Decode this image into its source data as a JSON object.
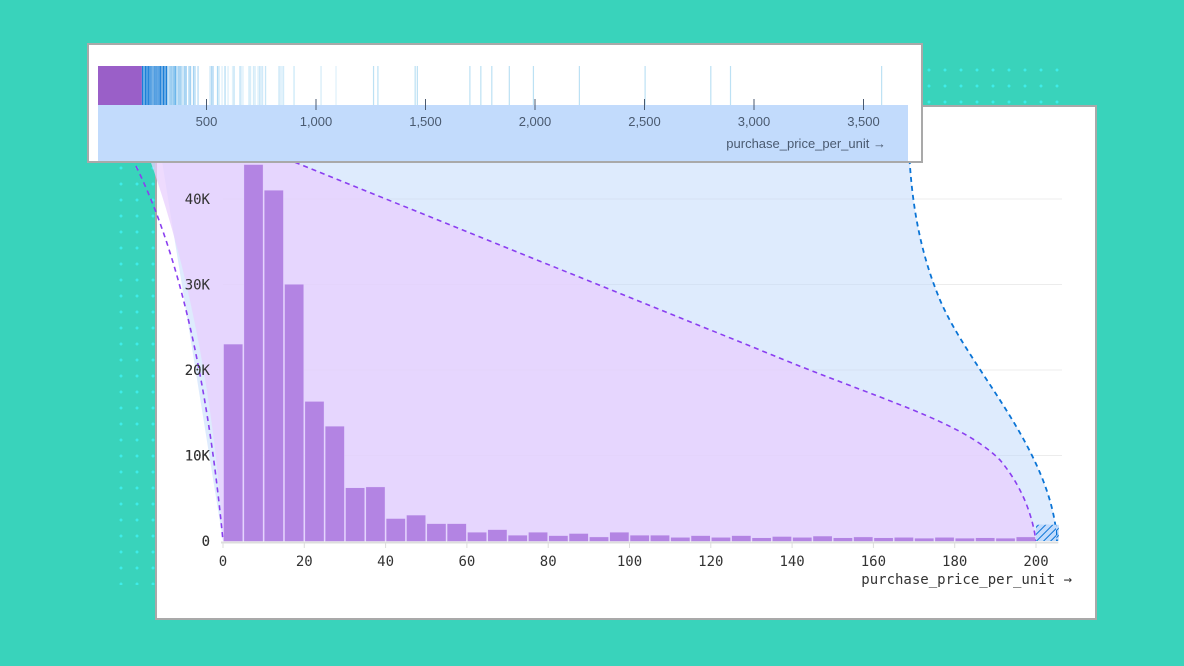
{
  "colors": {
    "background": "#39d3bb",
    "dots": "#3ff0f0",
    "bar": "#b384e3",
    "bar_zoom_overview": "#9a5fc8",
    "purple_band": "#e8cffd",
    "blue_band": "#c2dbfc",
    "purple_dash": "#8a3ff0",
    "blue_dash": "#0a74d6",
    "grid": "#e4e0ea",
    "axis": "#dddddd"
  },
  "overview": {
    "axis_label": "purchase_price_per_unit →",
    "ticks": [
      {
        "value": 500,
        "label": "500"
      },
      {
        "value": 1000,
        "label": "1,000"
      },
      {
        "value": 1500,
        "label": "1,500"
      },
      {
        "value": 2000,
        "label": "2,000"
      },
      {
        "value": 2500,
        "label": "2,500"
      },
      {
        "value": 3000,
        "label": "3,000"
      },
      {
        "value": 3500,
        "label": "3,500"
      }
    ],
    "domain": [
      0,
      3700
    ],
    "highlight_range": [
      0,
      205
    ]
  },
  "chart_data": {
    "type": "bar",
    "title": "",
    "xlabel": "purchase_price_per_unit →",
    "ylabel": "",
    "bin_width": 5,
    "xlim": [
      0,
      205
    ],
    "ylim": [
      0,
      44000
    ],
    "grid": true,
    "x_ticks": [
      0,
      20,
      40,
      60,
      80,
      100,
      120,
      140,
      160,
      180,
      200
    ],
    "y_ticks": [
      {
        "value": 0,
        "label": "0"
      },
      {
        "value": 10000,
        "label": "10K"
      },
      {
        "value": 20000,
        "label": "20K"
      },
      {
        "value": 30000,
        "label": "30K"
      },
      {
        "value": 40000,
        "label": "40K"
      }
    ],
    "categories": [
      "0-5",
      "5-10",
      "10-15",
      "15-20",
      "20-25",
      "25-30",
      "30-35",
      "35-40",
      "40-45",
      "45-50",
      "50-55",
      "55-60",
      "60-65",
      "65-70",
      "70-75",
      "75-80",
      "80-85",
      "85-90",
      "90-95",
      "95-100",
      "100-105",
      "105-110",
      "110-115",
      "115-120",
      "120-125",
      "125-130",
      "130-135",
      "135-140",
      "140-145",
      "145-150",
      "150-155",
      "155-160",
      "160-165",
      "165-170",
      "170-175",
      "175-180",
      "180-185",
      "185-190",
      "190-195",
      "195-200"
    ],
    "values": [
      23000,
      44000,
      41000,
      30000,
      16300,
      13400,
      6200,
      6300,
      2600,
      3000,
      2000,
      2000,
      1000,
      1300,
      650,
      1000,
      600,
      850,
      450,
      1000,
      650,
      650,
      400,
      600,
      400,
      600,
      350,
      500,
      400,
      550,
      350,
      450,
      350,
      400,
      300,
      400,
      300,
      350,
      300,
      450
    ],
    "overflow_bin": {
      "range": "200+",
      "pattern": "hatched",
      "value": 1900
    }
  }
}
